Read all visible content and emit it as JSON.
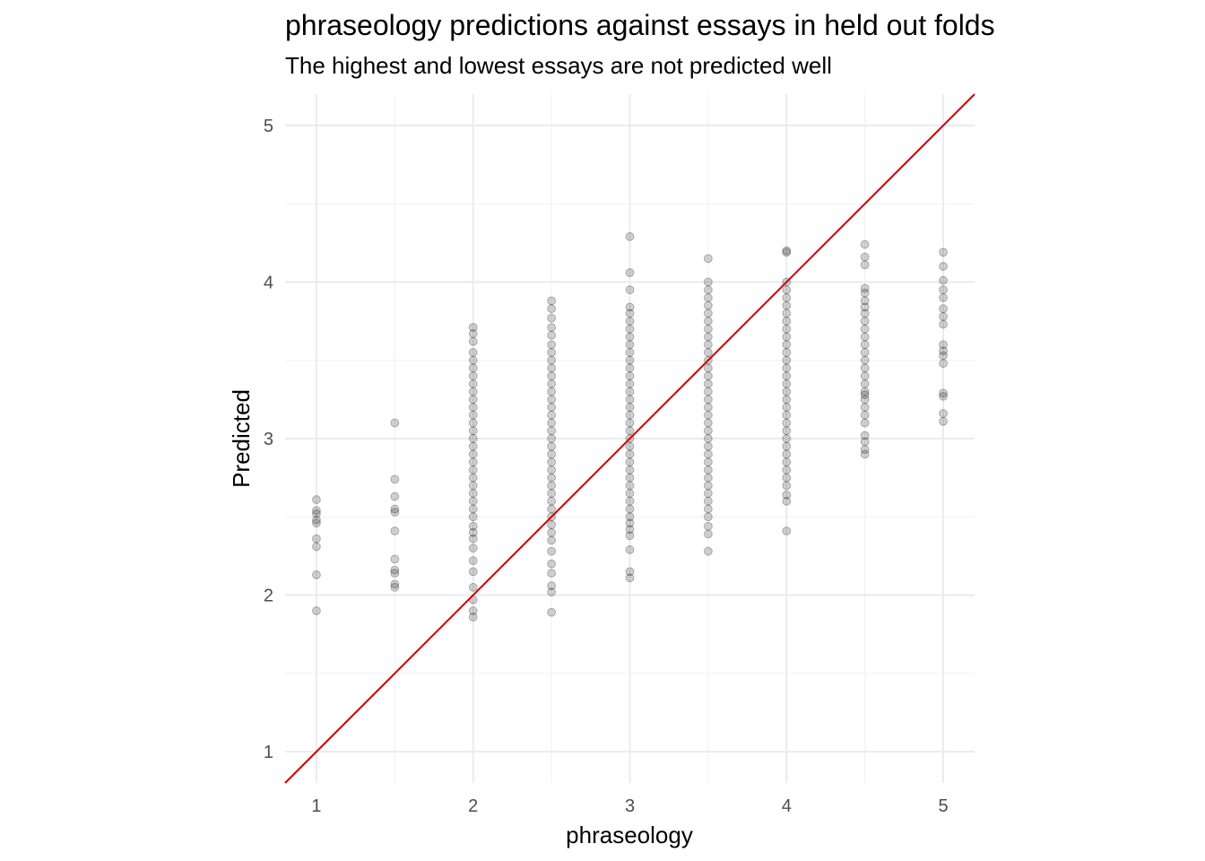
{
  "chart_data": {
    "type": "scatter",
    "title": "phraseology predictions against essays in held out folds",
    "subtitle": "The highest and lowest essays are not predicted well",
    "xlabel": "phraseology",
    "ylabel": "Predicted",
    "xlim": [
      0.8,
      5.2
    ],
    "ylim": [
      0.8,
      5.2
    ],
    "x_ticks": [
      1,
      2,
      3,
      4,
      5
    ],
    "y_ticks": [
      1,
      2,
      3,
      4,
      5
    ],
    "grid": true,
    "point_color": "#000000",
    "point_opacity": 0.18,
    "reference_line": {
      "slope": 1,
      "intercept": 0,
      "color": "#cc0000"
    },
    "groups": [
      {
        "x": 1.0,
        "y_values": [
          1.9,
          2.13,
          2.31,
          2.36,
          2.46,
          2.48,
          2.52,
          2.54,
          2.61
        ]
      },
      {
        "x": 1.5,
        "y_values": [
          2.05,
          2.07,
          2.14,
          2.16,
          2.23,
          2.41,
          2.53,
          2.55,
          2.63,
          2.74,
          3.1
        ]
      },
      {
        "x": 2.0,
        "y_values": [
          1.86,
          1.9,
          1.97,
          2.05,
          2.15,
          2.22,
          2.3,
          2.36,
          2.4,
          2.44,
          2.5,
          2.55,
          2.6,
          2.65,
          2.7,
          2.75,
          2.8,
          2.85,
          2.9,
          2.95,
          3.0,
          3.05,
          3.1,
          3.15,
          3.2,
          3.25,
          3.3,
          3.35,
          3.4,
          3.45,
          3.5,
          3.55,
          3.62,
          3.67,
          3.71
        ]
      },
      {
        "x": 2.5,
        "y_values": [
          1.89,
          2.02,
          2.06,
          2.14,
          2.2,
          2.28,
          2.35,
          2.4,
          2.45,
          2.5,
          2.55,
          2.6,
          2.65,
          2.7,
          2.75,
          2.8,
          2.85,
          2.9,
          2.95,
          3.0,
          3.05,
          3.1,
          3.15,
          3.2,
          3.25,
          3.3,
          3.35,
          3.4,
          3.45,
          3.5,
          3.55,
          3.6,
          3.66,
          3.71,
          3.77,
          3.83,
          3.88
        ]
      },
      {
        "x": 3.0,
        "y_values": [
          2.11,
          2.15,
          2.29,
          2.38,
          2.42,
          2.46,
          2.5,
          2.55,
          2.6,
          2.65,
          2.7,
          2.75,
          2.8,
          2.85,
          2.9,
          2.95,
          3.0,
          3.05,
          3.1,
          3.15,
          3.2,
          3.25,
          3.3,
          3.35,
          3.4,
          3.45,
          3.5,
          3.55,
          3.6,
          3.65,
          3.7,
          3.75,
          3.8,
          3.84,
          3.95,
          4.06,
          4.29
        ]
      },
      {
        "x": 3.5,
        "y_values": [
          2.28,
          2.39,
          2.44,
          2.5,
          2.55,
          2.6,
          2.65,
          2.7,
          2.75,
          2.8,
          2.85,
          2.9,
          2.95,
          3.0,
          3.05,
          3.1,
          3.15,
          3.2,
          3.25,
          3.3,
          3.35,
          3.4,
          3.45,
          3.5,
          3.55,
          3.6,
          3.65,
          3.7,
          3.75,
          3.8,
          3.85,
          3.9,
          3.95,
          4.0,
          4.15
        ]
      },
      {
        "x": 4.0,
        "y_values": [
          2.41,
          2.6,
          2.64,
          2.7,
          2.75,
          2.8,
          2.85,
          2.9,
          2.95,
          3.0,
          3.05,
          3.1,
          3.15,
          3.2,
          3.25,
          3.3,
          3.35,
          3.4,
          3.45,
          3.5,
          3.55,
          3.6,
          3.65,
          3.7,
          3.75,
          3.8,
          3.85,
          3.9,
          3.95,
          4.0,
          4.19,
          4.2
        ]
      },
      {
        "x": 4.5,
        "y_values": [
          2.9,
          2.93,
          2.98,
          3.02,
          3.1,
          3.15,
          3.2,
          3.25,
          3.28,
          3.3,
          3.35,
          3.4,
          3.45,
          3.5,
          3.55,
          3.6,
          3.65,
          3.7,
          3.75,
          3.8,
          3.84,
          3.88,
          3.93,
          3.96,
          4.11,
          4.16,
          4.24
        ]
      },
      {
        "x": 5.0,
        "y_values": [
          3.11,
          3.16,
          3.27,
          3.29,
          3.48,
          3.53,
          3.56,
          3.6,
          3.73,
          3.78,
          3.83,
          3.9,
          3.95,
          4.01,
          4.1,
          4.19
        ]
      }
    ]
  }
}
